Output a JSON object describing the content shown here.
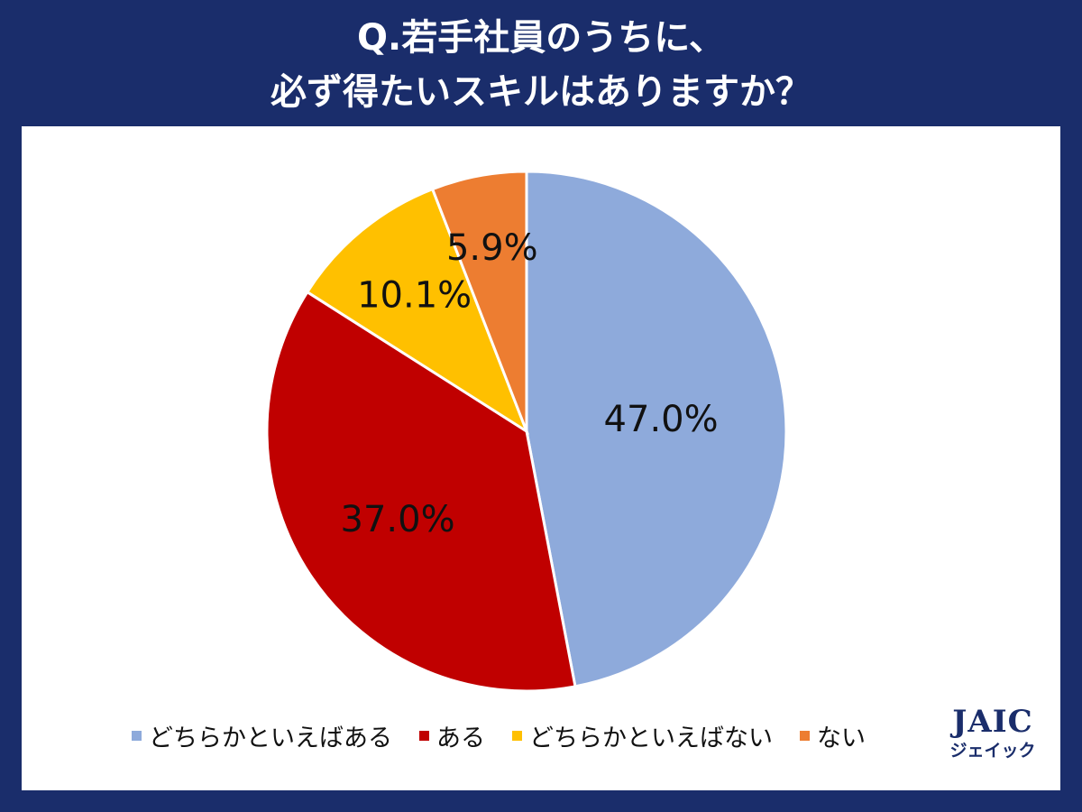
{
  "header": {
    "title_line1": "Q.若手社員のうちに、",
    "title_line2": "必ず得たいスキルはありますか？"
  },
  "chart_data": {
    "type": "pie",
    "title": "Q.若手社員のうちに、必ず得たいスキルはありますか？",
    "start_angle_deg": 0,
    "direction": "clockwise",
    "slices": [
      {
        "label": "どちらかといえばある",
        "value": 47.0,
        "display": "47.0%",
        "color": "#8eaadb"
      },
      {
        "label": "ある",
        "value": 37.0,
        "display": "37.0%",
        "color": "#c00000"
      },
      {
        "label": "どちらかといえばない",
        "value": 10.1,
        "display": "10.1%",
        "color": "#ffc000"
      },
      {
        "label": "ない",
        "value": 5.9,
        "display": "5.9%",
        "color": "#ed7d31"
      }
    ],
    "legend_position": "bottom"
  },
  "legend": {
    "items": [
      {
        "label": "どちらかといえばある",
        "color": "#8eaadb"
      },
      {
        "label": "ある",
        "color": "#c00000"
      },
      {
        "label": "どちらかといえばない",
        "color": "#ffc000"
      },
      {
        "label": "ない",
        "color": "#ed7d31"
      }
    ]
  },
  "logo": {
    "main": "JAIC",
    "sub": "ジェイック"
  }
}
